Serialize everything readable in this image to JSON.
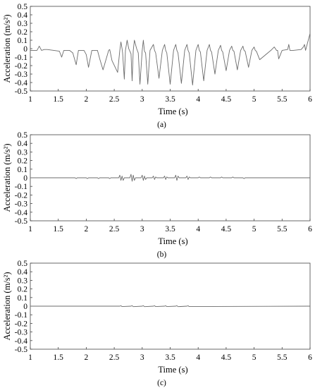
{
  "chart_data": [
    {
      "type": "line",
      "panel_label": "(a)",
      "xlabel": "Time (s)",
      "ylabel": "Acceleration (m/s²)",
      "xlim": [
        1,
        6
      ],
      "ylim": [
        -0.5,
        0.5
      ],
      "x_ticks": [
        "1",
        "1.5",
        "2",
        "2.5",
        "3",
        "3.5",
        "4",
        "4.5",
        "5",
        "5.5",
        "6"
      ],
      "y_ticks": [
        "0.5",
        "0.4",
        "0.3",
        "0.2",
        "0.1",
        "0",
        "-0.1",
        "-0.2",
        "-0.3",
        "-0.4",
        "-0.5"
      ],
      "grid": false,
      "series": [
        {
          "color": "#6b6b6b",
          "x": [
            1,
            1.12,
            1.16,
            1.2,
            1.25,
            1.3,
            1.42,
            1.52,
            1.56,
            1.6,
            1.7,
            1.76,
            1.82,
            1.86,
            1.96,
            2.0,
            2.04,
            2.1,
            2.2,
            2.24,
            2.3,
            2.4,
            2.42,
            2.46,
            2.56,
            2.6,
            2.62,
            2.64,
            2.65,
            2.68,
            2.7,
            2.73,
            2.76,
            2.8,
            2.82,
            2.84,
            2.86,
            2.9,
            2.93,
            2.96,
            3.0,
            3.02,
            3.04,
            3.06,
            3.1,
            3.14,
            3.2,
            3.22,
            3.24,
            3.3,
            3.36,
            3.4,
            3.42,
            3.44,
            3.5,
            3.56,
            3.6,
            3.62,
            3.64,
            3.7,
            3.76,
            3.8,
            3.82,
            3.84,
            3.9,
            3.96,
            4.0,
            4.02,
            4.04,
            4.1,
            4.16,
            4.2,
            4.22,
            4.24,
            4.3,
            4.36,
            4.4,
            4.42,
            4.44,
            4.5,
            4.56,
            4.6,
            4.62,
            4.64,
            4.7,
            4.76,
            4.8,
            4.82,
            4.84,
            4.9,
            4.96,
            5.0,
            5.02,
            5.04,
            5.1,
            5.3,
            5.36,
            5.4,
            5.42,
            5.44,
            5.5,
            5.6,
            5.62,
            5.64,
            5.7,
            5.84,
            5.88,
            5.9,
            5.92,
            6.0
          ],
          "y": [
            -0.02,
            -0.02,
            0.03,
            -0.02,
            -0.01,
            -0.01,
            -0.02,
            -0.03,
            -0.1,
            -0.02,
            -0.02,
            -0.05,
            -0.19,
            -0.02,
            -0.02,
            -0.07,
            -0.22,
            -0.02,
            -0.02,
            -0.12,
            -0.25,
            -0.02,
            -0.01,
            -0.14,
            -0.28,
            -0.02,
            0.08,
            0.0,
            -0.05,
            -0.36,
            -0.02,
            0.1,
            0.0,
            -0.06,
            -0.38,
            -0.02,
            0.1,
            0.0,
            -0.05,
            -0.42,
            -0.02,
            0.1,
            -0.03,
            -0.05,
            -0.42,
            -0.02,
            0.05,
            -0.02,
            -0.05,
            -0.35,
            -0.02,
            0.05,
            -0.02,
            -0.05,
            -0.42,
            -0.02,
            0.05,
            -0.02,
            -0.05,
            -0.41,
            -0.02,
            0.05,
            -0.02,
            -0.05,
            -0.43,
            -0.02,
            0.05,
            -0.02,
            -0.04,
            -0.38,
            -0.02,
            0.05,
            -0.02,
            -0.04,
            -0.3,
            -0.02,
            0.04,
            -0.02,
            -0.04,
            -0.26,
            -0.02,
            0.03,
            -0.02,
            -0.03,
            -0.25,
            -0.02,
            0.03,
            -0.02,
            -0.03,
            -0.22,
            -0.02,
            0.02,
            -0.02,
            -0.03,
            -0.13,
            -0.02,
            0.02,
            -0.02,
            -0.02,
            -0.12,
            -0.02,
            -0.01,
            0.05,
            -0.02,
            -0.02,
            -0.01,
            0.02,
            0.05,
            -0.02,
            0.18
          ]
        }
      ]
    },
    {
      "type": "line",
      "panel_label": "(b)",
      "xlabel": "Time (s)",
      "ylabel": "Acceleration (m/s²)",
      "xlim": [
        1,
        6
      ],
      "ylim": [
        -0.5,
        0.5
      ],
      "x_ticks": [
        "1",
        "1.5",
        "2",
        "2.5",
        "3",
        "3.5",
        "4",
        "4.5",
        "5",
        "5.5",
        "6"
      ],
      "y_ticks": [
        "0.5",
        "0.4",
        "0.3",
        "0.2",
        "0.1",
        "0",
        "-0.1",
        "-0.2",
        "-0.3",
        "-0.4",
        "-0.5"
      ],
      "grid": false,
      "series": [
        {
          "color": "#6b6b6b",
          "x": [
            1,
            1.8,
            1.82,
            1.84,
            2.0,
            2.02,
            2.04,
            2.2,
            2.22,
            2.24,
            2.4,
            2.42,
            2.44,
            2.58,
            2.6,
            2.62,
            2.64,
            2.66,
            2.68,
            2.78,
            2.8,
            2.82,
            2.84,
            2.86,
            2.88,
            2.98,
            3.0,
            3.02,
            3.04,
            3.06,
            3.08,
            3.18,
            3.2,
            3.22,
            3.24,
            3.26,
            3.38,
            3.4,
            3.42,
            3.44,
            3.46,
            3.58,
            3.6,
            3.62,
            3.64,
            3.66,
            3.78,
            3.8,
            3.82,
            3.84,
            3.86,
            4.0,
            4.02,
            4.04,
            4.2,
            4.22,
            4.24,
            4.4,
            4.42,
            4.44,
            4.6,
            4.62,
            4.64,
            4.8,
            4.82,
            4.84,
            6.0
          ],
          "y": [
            0.0,
            0.0,
            -0.01,
            0.0,
            0.0,
            -0.01,
            0.0,
            0.0,
            -0.01,
            0.0,
            0.0,
            -0.01,
            0.0,
            0.0,
            0.03,
            -0.03,
            0.02,
            -0.03,
            0.0,
            0.0,
            0.04,
            -0.04,
            0.03,
            -0.03,
            0.0,
            0.0,
            0.03,
            -0.03,
            0.02,
            -0.02,
            0.0,
            0.0,
            0.02,
            -0.02,
            0.01,
            0.0,
            0.0,
            0.02,
            -0.02,
            0.01,
            0.0,
            0.0,
            0.03,
            -0.03,
            0.02,
            0.0,
            0.0,
            0.02,
            -0.02,
            0.01,
            0.0,
            0.0,
            0.01,
            0.0,
            0.0,
            0.01,
            0.0,
            0.0,
            0.01,
            0.0,
            0.0,
            0.01,
            0.0,
            0.0,
            -0.01,
            0.0,
            0.0
          ]
        }
      ]
    },
    {
      "type": "line",
      "panel_label": "(c)",
      "xlabel": "Time (s)",
      "ylabel": "Acceleration (m/s²)",
      "xlim": [
        1,
        6
      ],
      "ylim": [
        -0.5,
        0.5
      ],
      "x_ticks": [
        "1",
        "1.5",
        "2",
        "2.5",
        "3",
        "3.5",
        "4",
        "4.5",
        "5",
        "5.5",
        "6"
      ],
      "y_ticks": [
        "0.5",
        "0.4",
        "0.3",
        "0.2",
        "0.1",
        "0",
        "-0.1",
        "-0.2",
        "-0.3",
        "-0.4",
        "-0.5"
      ],
      "grid": false,
      "series": [
        {
          "color": "#6b6b6b",
          "x": [
            1,
            2.6,
            2.62,
            2.64,
            2.8,
            2.82,
            2.84,
            3.0,
            3.02,
            3.04,
            3.2,
            3.22,
            3.24,
            3.4,
            3.42,
            3.44,
            3.6,
            3.62,
            3.64,
            3.8,
            3.82,
            3.84,
            6.0
          ],
          "y": [
            0.0,
            0.0,
            0.005,
            -0.005,
            0.0,
            0.006,
            -0.006,
            0.0,
            0.006,
            -0.006,
            0.0,
            0.005,
            -0.005,
            0.0,
            0.005,
            -0.005,
            0.0,
            0.006,
            -0.006,
            0.0,
            0.005,
            -0.005,
            0.0
          ]
        }
      ]
    }
  ]
}
